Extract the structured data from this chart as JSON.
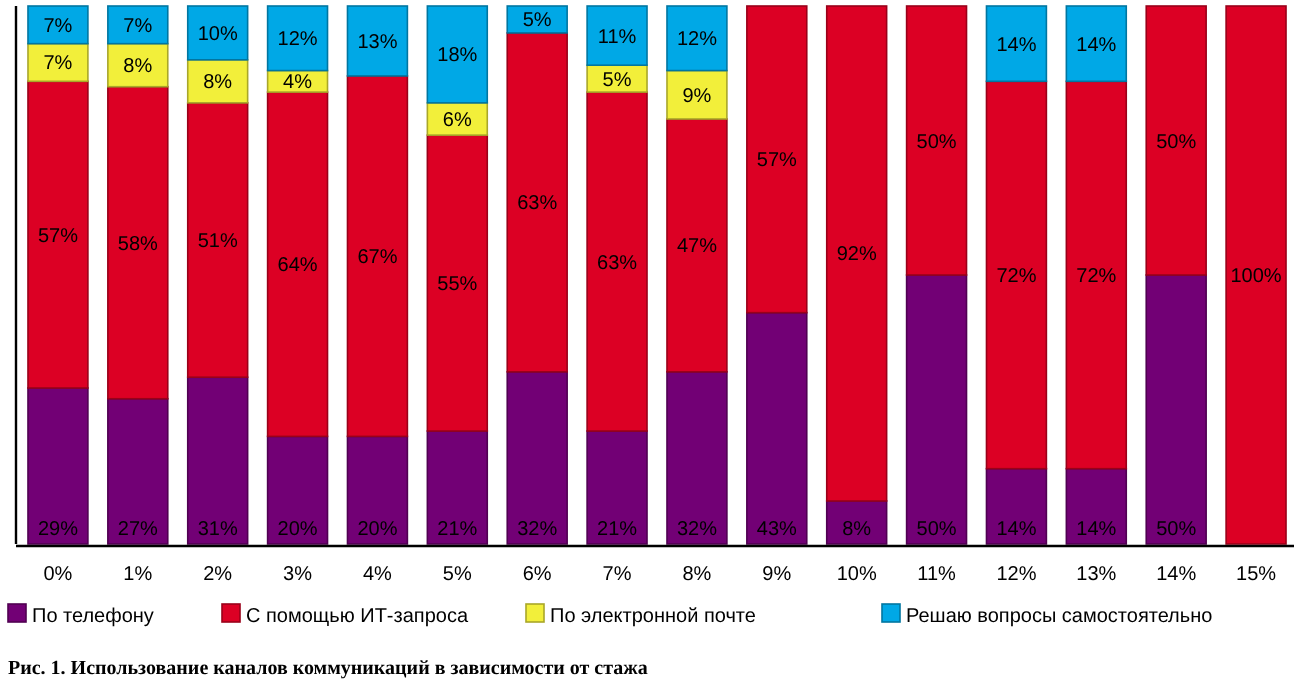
{
  "chart_data": {
    "type": "bar",
    "stacked": true,
    "categories": [
      "0%",
      "1%",
      "2%",
      "3%",
      "4%",
      "5%",
      "6%",
      "7%",
      "8%",
      "9%",
      "10%",
      "11%",
      "12%",
      "13%",
      "14%",
      "15%"
    ],
    "ylim": [
      0,
      100
    ],
    "tick_labels": "x",
    "legend": "bottom",
    "series": [
      {
        "name": "По телефону",
        "color": "#720075",
        "values": [
          29,
          27,
          31,
          20,
          20,
          21,
          32,
          21,
          32,
          43,
          8,
          50,
          14,
          14,
          50,
          null
        ],
        "value_labels": [
          "29%",
          "27%",
          "31%",
          "20%",
          "20%",
          "21%",
          "32%",
          "21%",
          "32%",
          "43%",
          "8%",
          "50%",
          "14%",
          "14%",
          "50%",
          null
        ]
      },
      {
        "name": "С помощью ИТ-запроса",
        "color": "#dc0024",
        "values": [
          57,
          58,
          51,
          64,
          67,
          55,
          63,
          63,
          47,
          57,
          92,
          50,
          72,
          72,
          50,
          100
        ],
        "value_labels": [
          "57%",
          "58%",
          "51%",
          "64%",
          "67%",
          "55%",
          "63%",
          "63%",
          "47%",
          "57%",
          "92%",
          "50%",
          "72%",
          "72%",
          "50%",
          "100%"
        ]
      },
      {
        "name": "По электронной почте",
        "color": "#f2ef3a",
        "values": [
          7,
          8,
          8,
          4,
          null,
          6,
          null,
          5,
          9,
          null,
          null,
          null,
          null,
          null,
          null,
          null
        ],
        "value_labels": [
          "7%",
          "8%",
          "8%",
          "4%",
          null,
          "6%",
          null,
          "5%",
          "9%",
          null,
          null,
          null,
          null,
          null,
          null,
          null
        ]
      },
      {
        "name": "Решаю вопросы самостоятельно",
        "color": "#00a8e6",
        "values": [
          7,
          7,
          10,
          12,
          13,
          18,
          5,
          11,
          12,
          null,
          null,
          null,
          14,
          14,
          null,
          null
        ],
        "value_labels": [
          "7%",
          "7%",
          "10%",
          "12%",
          "13%",
          "18%",
          "5%",
          "11%",
          "12%",
          null,
          null,
          null,
          "14%",
          "14%",
          null,
          null
        ]
      }
    ],
    "annotations": [
      "Рис. 1. Использование каналов коммуникаций в зависимости от стажа"
    ]
  }
}
